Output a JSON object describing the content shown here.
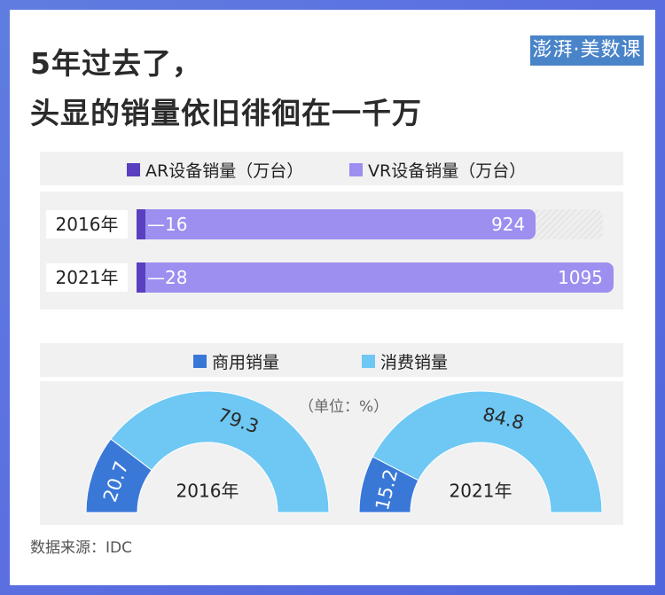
{
  "title_line1": "5年过去了，",
  "title_line2": "头显的销量依旧徘徊在一千万",
  "logo_text": "澎湃·美数课",
  "source": "数据来源：IDC",
  "colors": {
    "ar": "#5a40c0",
    "vr": "#9c8ff0",
    "commercial": "#3a78d8",
    "consumer": "#6ec8f3"
  },
  "chart_data": [
    {
      "type": "bar",
      "orientation": "horizontal",
      "stacked": true,
      "categories": [
        "2016年",
        "2021年"
      ],
      "series": [
        {
          "name": "AR设备销量（万台）",
          "values": [
            16,
            28
          ]
        },
        {
          "name": "VR设备销量（万台）",
          "values": [
            924,
            1095
          ]
        }
      ],
      "legend": "top"
    },
    {
      "type": "pie",
      "subtype": "half-donut",
      "unit_note": "（单位：%）",
      "series_names": [
        "商用销量",
        "消费销量"
      ],
      "charts": [
        {
          "year": "2016年",
          "values": [
            20.7,
            79.3
          ]
        },
        {
          "year": "2021年",
          "values": [
            15.2,
            84.8
          ]
        }
      ],
      "legend": "top"
    }
  ]
}
